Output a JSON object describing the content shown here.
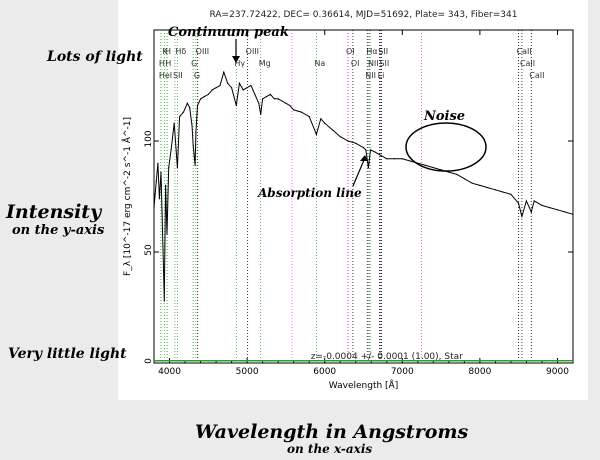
{
  "annotations": {
    "lots_of_light": "Lots of light",
    "very_little_light": "Very little light",
    "intensity": "Intensity",
    "intensity_sub": "on the y-axis",
    "wavelength": "Wavelength in Angstroms",
    "wavelength_sub": "on the x-axis",
    "continuum_peak": "Continuum peak",
    "absorption_line": "Absorption line",
    "noise": "Noise"
  },
  "chart_data": {
    "type": "line",
    "title": "RA=237.72422, DEC= 0.36614, MJD=51692, Plate= 343, Fiber=341",
    "xlabel": "Wavelength [Å]",
    "ylabel": "F_λ [10^-17 erg cm^-2 s^-1 Å^-1]",
    "xlim": [
      3800,
      9200
    ],
    "ylim": [
      0,
      150
    ],
    "xticks": [
      4000,
      5000,
      6000,
      7000,
      8000,
      9000
    ],
    "yticks": [
      0,
      50,
      100
    ],
    "redshift_text": "z=-0.0004 +/- 0.0001 (1.00), Star",
    "series": [
      {
        "role": "flux",
        "color": "#000000",
        "x": [
          3800,
          3830,
          3850,
          3870,
          3890,
          3910,
          3933,
          3950,
          3968,
          3990,
          4020,
          4060,
          4101,
          4130,
          4180,
          4230,
          4260,
          4290,
          4305,
          4330,
          4340,
          4360,
          4400,
          4450,
          4500,
          4550,
          4600,
          4650,
          4700,
          4750,
          4800,
          4861,
          4900,
          4950,
          5000,
          5050,
          5100,
          5150,
          5175,
          5200,
          5250,
          5300,
          5350,
          5400,
          5450,
          5500,
          5550,
          5600,
          5700,
          5800,
          5893,
          5950,
          6000,
          6100,
          6200,
          6300,
          6400,
          6500,
          6530,
          6563,
          6590,
          6650,
          6700,
          6800,
          6900,
          7000,
          7100,
          7200,
          7300,
          7400,
          7500,
          7600,
          7700,
          7800,
          7900,
          8000,
          8100,
          8200,
          8300,
          8400,
          8498,
          8542,
          8600,
          8662,
          8700,
          8800,
          8900,
          9000,
          9100,
          9200
        ],
        "y": [
          70,
          82,
          90,
          74,
          86,
          60,
          28,
          80,
          58,
          88,
          96,
          108,
          88,
          111,
          113,
          117,
          115,
          107,
          98,
          89,
          104,
          116,
          119,
          120,
          121,
          123,
          124,
          125,
          131,
          126,
          124,
          116,
          126,
          123,
          124,
          125,
          121,
          117,
          112,
          119,
          120,
          121,
          119,
          119,
          118,
          117,
          116,
          114,
          113,
          111,
          103,
          110,
          108,
          105,
          102,
          100,
          99,
          97,
          96,
          88,
          96,
          95,
          94,
          92,
          92,
          92,
          91,
          90,
          89,
          88,
          87,
          86,
          85,
          83,
          81,
          80,
          79,
          78,
          77,
          76,
          72,
          66,
          73,
          68,
          73,
          71,
          70,
          69,
          68,
          67
        ]
      },
      {
        "role": "near-zero trace",
        "color": "#2aa02a",
        "x": [
          3800,
          9200
        ],
        "y": [
          1,
          1
        ]
      }
    ],
    "lines": [
      {
        "label": "H",
        "wl": 3968,
        "color": "#33aa33",
        "row": 0
      },
      {
        "label": "K",
        "wl": 3933,
        "color": "#33aa33",
        "row": 0
      },
      {
        "label": "H",
        "wl": 3889,
        "color": "#33aa33",
        "row": 1
      },
      {
        "label": "H",
        "wl": 3970,
        "color": "#33aa33",
        "row": 1
      },
      {
        "label": "HeI",
        "wl": 3888,
        "color": "#33aa33",
        "row": 2
      },
      {
        "label": "SII",
        "wl": 4070,
        "color": "#33aa33",
        "row": 2
      },
      {
        "label": "Hδ",
        "wl": 4101,
        "color": "#33aa33",
        "row": 0
      },
      {
        "label": "G",
        "wl": 4304,
        "color": "#33aa33",
        "row": 1
      },
      {
        "label": "G",
        "wl": 4340,
        "color": "#33aa33",
        "row": 2
      },
      {
        "label": "OIII",
        "wl": 4363,
        "color": "#000000",
        "row": 0
      },
      {
        "label": "Hγ",
        "wl": 4861,
        "color": "#33aa33",
        "row": 1
      },
      {
        "label": "OIII",
        "wl": 5007,
        "color": "#000000",
        "row": 0
      },
      {
        "label": "Mg",
        "wl": 5175,
        "color": "#33aa33",
        "row": 1
      },
      {
        "label": "Na",
        "wl": 5893,
        "color": "#33aa33",
        "row": 1
      },
      {
        "label": "OI",
        "wl": 6300,
        "color": "#000000",
        "row": 0
      },
      {
        "label": "OI",
        "wl": 6363,
        "color": "#000000",
        "row": 1
      },
      {
        "label": "Hα",
        "wl": 6563,
        "color": "#33aa33",
        "row": 0
      },
      {
        "label": "SII",
        "wl": 6716,
        "color": "#000000",
        "row": 0
      },
      {
        "label": "NII",
        "wl": 6583,
        "color": "#000000",
        "row": 1
      },
      {
        "label": "SII",
        "wl": 6731,
        "color": "#000000",
        "row": 1
      },
      {
        "label": "NII",
        "wl": 6548,
        "color": "#000000",
        "row": 2
      },
      {
        "label": "Li",
        "wl": 6708,
        "color": "#000000",
        "row": 2
      },
      {
        "label": "CaII",
        "wl": 8498,
        "color": "#000000",
        "row": 0
      },
      {
        "label": "CaII",
        "wl": 8542,
        "color": "#000000",
        "row": 1
      },
      {
        "label": "CaII",
        "wl": 8662,
        "color": "#000000",
        "row": 2
      }
    ],
    "magenta_lines": [
      5577,
      6300,
      7246
    ],
    "grid": false
  }
}
